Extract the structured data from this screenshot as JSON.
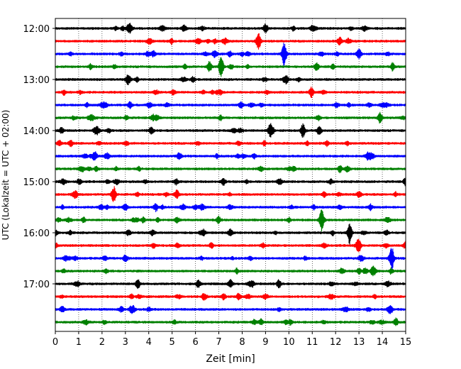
{
  "chart_data": {
    "type": "line",
    "title": "",
    "xlabel": "Zeit  [min]",
    "ylabel": "UTC (Lokalzeit = UTC + 02:00)",
    "xlim": [
      0,
      15
    ],
    "x_ticks": [
      "0",
      "1",
      "2",
      "3",
      "4",
      "5",
      "6",
      "7",
      "8",
      "9",
      "10",
      "11",
      "12",
      "13",
      "14",
      "15"
    ],
    "y_tick_labels": [
      "12:00",
      "13:00",
      "14:00",
      "15:00",
      "16:00",
      "17:00"
    ],
    "grid": "vertical dotted lines at each minute",
    "trace_colors": [
      "#000000",
      "#ff0000",
      "#0000ff",
      "#008000"
    ],
    "trace_start_times": [
      "12:00",
      "12:15",
      "12:30",
      "12:45",
      "13:00",
      "13:15",
      "13:30",
      "13:45",
      "14:00",
      "14:15",
      "14:30",
      "14:45",
      "15:00",
      "15:15",
      "15:30",
      "15:45",
      "16:00",
      "16:15",
      "16:30",
      "16:45",
      "17:00",
      "17:15",
      "17:30",
      "17:45"
    ],
    "events": [
      {
        "trace": "12:00",
        "minute": 9.0,
        "amplitude": 0.35
      },
      {
        "trace": "12:00",
        "minute": 3.2,
        "amplitude": 0.25
      },
      {
        "trace": "12:15",
        "minute": 8.7,
        "amplitude": 0.7
      },
      {
        "trace": "12:30",
        "minute": 9.8,
        "amplitude": 1.0
      },
      {
        "trace": "12:30",
        "minute": 13.0,
        "amplitude": 0.4
      },
      {
        "trace": "12:30",
        "minute": 4.2,
        "amplitude": 0.25
      },
      {
        "trace": "12:45",
        "minute": 7.1,
        "amplitude": 0.9
      },
      {
        "trace": "12:45",
        "minute": 6.6,
        "amplitude": 0.4
      },
      {
        "trace": "13:00",
        "minute": 3.1,
        "amplitude": 0.3
      },
      {
        "trace": "13:30",
        "minute": 3.2,
        "amplitude": 0.25
      },
      {
        "trace": "13:45",
        "minute": 13.9,
        "amplitude": 0.45
      },
      {
        "trace": "14:00",
        "minute": 9.2,
        "amplitude": 0.55
      },
      {
        "trace": "14:00",
        "minute": 10.6,
        "amplitude": 0.55
      },
      {
        "trace": "14:00",
        "minute": 11.3,
        "amplitude": 0.4
      },
      {
        "trace": "14:00",
        "minute": 1.8,
        "amplitude": 0.3
      },
      {
        "trace": "14:30",
        "minute": 1.7,
        "amplitude": 0.35
      },
      {
        "trace": "14:30",
        "minute": 5.3,
        "amplitude": 0.3
      },
      {
        "trace": "15:00",
        "minute": 7.2,
        "amplitude": 0.3
      },
      {
        "trace": "15:00",
        "minute": 15.0,
        "amplitude": 0.35
      },
      {
        "trace": "15:15",
        "minute": 2.5,
        "amplitude": 0.65
      },
      {
        "trace": "15:15",
        "minute": 5.2,
        "amplitude": 0.35
      },
      {
        "trace": "15:30",
        "minute": 4.3,
        "amplitude": 0.3
      },
      {
        "trace": "15:45",
        "minute": 11.4,
        "amplitude": 0.75
      },
      {
        "trace": "16:00",
        "minute": 12.6,
        "amplitude": 0.9
      },
      {
        "trace": "16:00",
        "minute": 7.5,
        "amplitude": 0.3
      },
      {
        "trace": "16:15",
        "minute": 13.0,
        "amplitude": 0.45
      },
      {
        "trace": "16:15",
        "minute": 15.0,
        "amplitude": 0.35
      },
      {
        "trace": "16:30",
        "minute": 14.4,
        "amplitude": 1.0
      },
      {
        "trace": "16:30",
        "minute": 3.0,
        "amplitude": 0.3
      },
      {
        "trace": "17:00",
        "minute": 7.5,
        "amplitude": 0.35
      },
      {
        "trace": "17:15",
        "minute": 9.0,
        "amplitude": 0.2
      },
      {
        "trace": "17:30",
        "minute": 14.3,
        "amplitude": 0.25
      },
      {
        "trace": "17:45",
        "minute": 8.8,
        "amplitude": 0.25
      }
    ]
  }
}
